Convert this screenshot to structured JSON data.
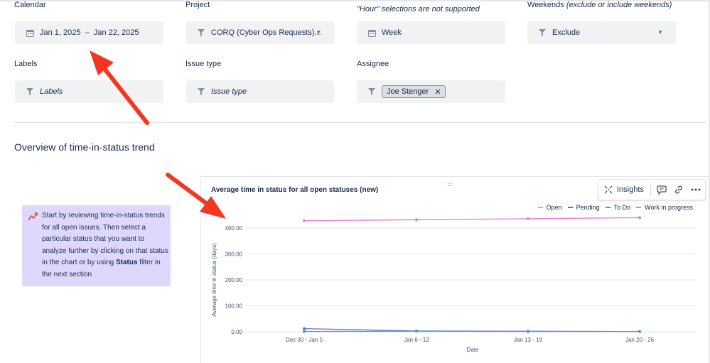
{
  "filters": {
    "calendar": {
      "label": "Calendar",
      "value": "Jan 1, 2025  –  Jan 22, 2025"
    },
    "project": {
      "label": "Project",
      "value": "CORQ (Cyber Ops Requests)..."
    },
    "granularity": {
      "note": "\"Hour\" selections are not supported",
      "value": "Week"
    },
    "weekends": {
      "label_main": "Weekends",
      "label_note": "(exclude or include weekends)",
      "value": "Exclude"
    },
    "labels": {
      "label": "Labels",
      "placeholder": "Labels"
    },
    "issue_type": {
      "label": "Issue type",
      "placeholder": "Issue type"
    },
    "assignee": {
      "label": "Assignee",
      "chip": "Joe Stenger"
    }
  },
  "section": {
    "title": "Overview of time-in-status trend"
  },
  "info_card": {
    "text_before": "Start by reviewing time-in-status trends for all open issues. Then select a particular status that you want to analyze further by clicking on that status in the chart or by using ",
    "text_bold": "Status",
    "text_after": " filter in the next section"
  },
  "chart_panel": {
    "title": "Average time in status for all open statuses (new)",
    "insights_label": "Insights",
    "handle": "::::::",
    "toolbar_icons": [
      "comment-icon",
      "link-icon",
      "more-icon"
    ]
  },
  "chart_data": {
    "type": "line",
    "x": [
      "Dec 30 - Jan 5",
      "Jan 6 - 12",
      "Jan 13 - 19",
      "Jan 20 - 26"
    ],
    "xlabel": "Date",
    "ylabel": "Average time in status (days)",
    "ylim": [
      0,
      400
    ],
    "yticks": [
      "0.00",
      "100.00",
      "200.00",
      "300.00",
      "400.00"
    ],
    "grid": true,
    "legend_position": "top-right",
    "series": [
      {
        "name": "Open",
        "color": "#f5a25b",
        "values": [
          null,
          null,
          null,
          null
        ]
      },
      {
        "name": "Pending",
        "color": "#6f6ad8",
        "values": [
          12,
          3,
          2,
          1
        ]
      },
      {
        "name": "To Do",
        "color": "#2da8b8",
        "values": [
          1,
          2,
          1,
          1
        ]
      },
      {
        "name": "Work in progress",
        "color": "#e17ad4",
        "values": [
          428,
          432,
          436,
          440
        ]
      }
    ]
  }
}
